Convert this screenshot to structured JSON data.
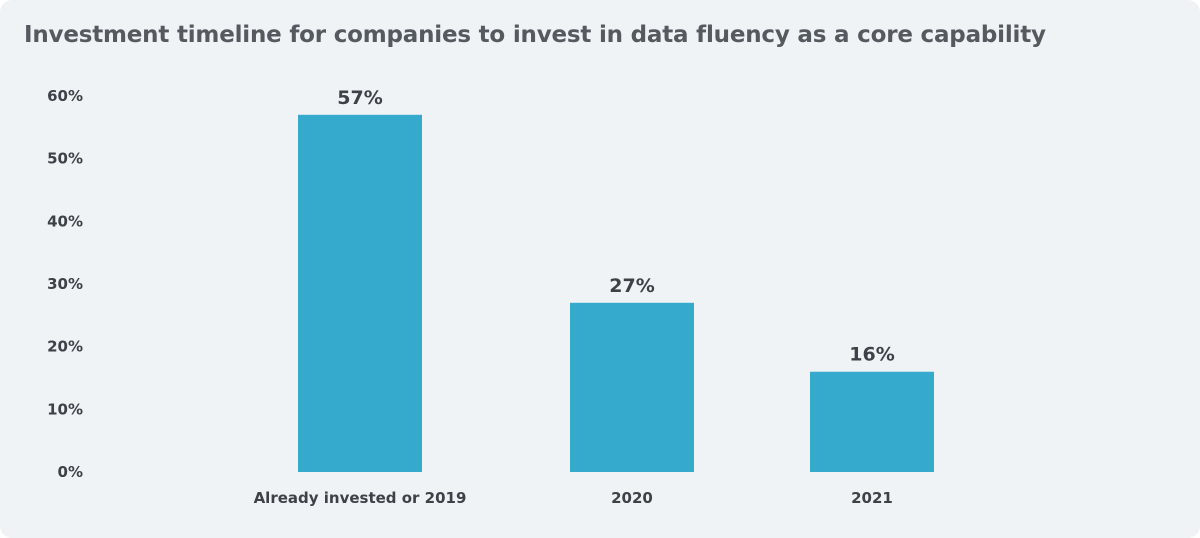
{
  "chart_data": {
    "type": "bar",
    "title": "Investment timeline for companies to invest in data fluency as a core capability",
    "categories": [
      "Already invested or 2019",
      "2020",
      "2021"
    ],
    "values": [
      57,
      27,
      16
    ],
    "value_labels": [
      "57%",
      "27%",
      "16%"
    ],
    "xlabel": "",
    "ylabel": "",
    "ylim": [
      0,
      60
    ],
    "yticks": [
      0,
      10,
      20,
      30,
      40,
      50,
      60
    ],
    "ytick_labels": [
      "0%",
      "10%",
      "20%",
      "30%",
      "40%",
      "50%",
      "60%"
    ],
    "grid": false,
    "legend": "none",
    "bar_color": "#35aacd"
  },
  "colors": {
    "background": "#eff3f5",
    "text": "#3d4249",
    "title": "#555a60"
  }
}
